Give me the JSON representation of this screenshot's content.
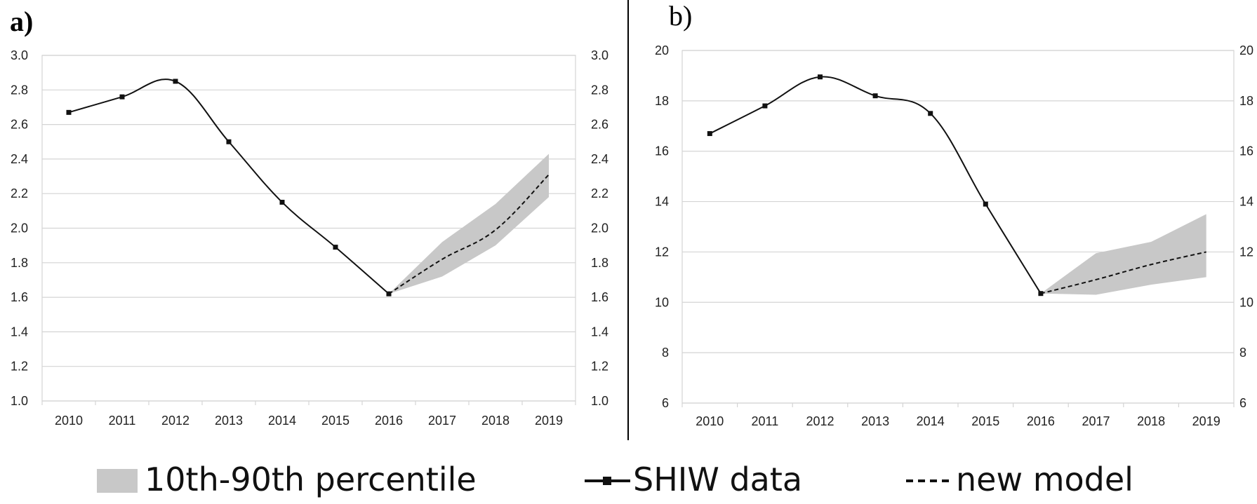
{
  "legend": {
    "band_label": "10th-90th percentile",
    "data_label": "SHIW data",
    "model_label": "new model"
  },
  "colors": {
    "band": "#c8c8c8",
    "line": "#111111"
  },
  "chart_data": [
    {
      "panel": "a)",
      "type": "line",
      "categories": [
        "2010",
        "2011",
        "2012",
        "2013",
        "2014",
        "2015",
        "2016",
        "2017",
        "2018",
        "2019"
      ],
      "ylim": [
        1.0,
        3.0
      ],
      "yticks": [
        "1.0",
        "1.2",
        "1.4",
        "1.6",
        "1.8",
        "2.0",
        "2.2",
        "2.4",
        "2.6",
        "2.8",
        "3.0"
      ],
      "grid": true,
      "series": [
        {
          "name": "SHIW data",
          "style": "solid-markers",
          "x": [
            "2010",
            "2011",
            "2012",
            "2013",
            "2014",
            "2015",
            "2016"
          ],
          "values": [
            2.67,
            2.76,
            2.85,
            2.5,
            2.15,
            1.89,
            1.62
          ]
        },
        {
          "name": "new model",
          "style": "dashed",
          "x": [
            "2016",
            "2017",
            "2018",
            "2019"
          ],
          "values": [
            1.62,
            1.82,
            1.99,
            2.31
          ]
        },
        {
          "name": "10th-90th percentile",
          "style": "band",
          "x": [
            "2016",
            "2017",
            "2018",
            "2019"
          ],
          "low": [
            1.62,
            1.72,
            1.9,
            2.18
          ],
          "high": [
            1.62,
            1.92,
            2.14,
            2.43
          ]
        }
      ]
    },
    {
      "panel": "b)",
      "type": "line",
      "categories": [
        "2010",
        "2011",
        "2012",
        "2013",
        "2014",
        "2015",
        "2016",
        "2017",
        "2018",
        "2019"
      ],
      "ylim": [
        6,
        20
      ],
      "yticks": [
        "6",
        "8",
        "10",
        "12",
        "14",
        "16",
        "18",
        "20"
      ],
      "grid": true,
      "series": [
        {
          "name": "SHIW data",
          "style": "solid-markers",
          "x": [
            "2010",
            "2011",
            "2012",
            "2013",
            "2014",
            "2015",
            "2016"
          ],
          "values": [
            16.7,
            17.8,
            18.95,
            18.2,
            17.5,
            13.9,
            10.35
          ]
        },
        {
          "name": "new model",
          "style": "dashed",
          "x": [
            "2016",
            "2017",
            "2018",
            "2019"
          ],
          "values": [
            10.35,
            10.9,
            11.5,
            12.0
          ]
        },
        {
          "name": "10th-90th percentile",
          "style": "band",
          "x": [
            "2016",
            "2017",
            "2018",
            "2019"
          ],
          "low": [
            10.35,
            10.3,
            10.7,
            11.0
          ],
          "high": [
            10.35,
            11.95,
            12.4,
            13.5
          ]
        }
      ]
    }
  ]
}
